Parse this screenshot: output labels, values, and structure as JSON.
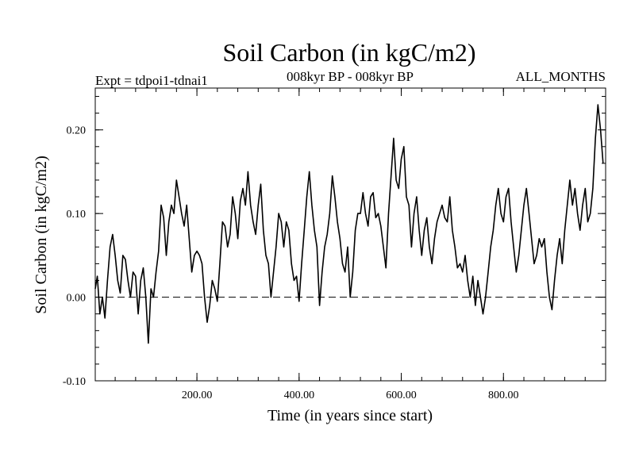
{
  "chart_data": {
    "type": "line",
    "title": "Soil Carbon (in kgC/m2)",
    "subtitle_left": "Expt = tdpoi1-tdnai1",
    "subtitle_center": "008kyr BP - 008kyr BP",
    "subtitle_right": "ALL_MONTHS",
    "xlabel": "Time (in years since start)",
    "ylabel": "Soil Carbon (in kgC/m2)",
    "xlim": [
      1,
      1000
    ],
    "ylim": [
      -0.1,
      0.25
    ],
    "x_ticks": [
      200,
      400,
      600,
      800
    ],
    "x_tick_labels": [
      "200.00",
      "400.00",
      "600.00",
      "800.00"
    ],
    "y_ticks": [
      -0.1,
      0.0,
      0.1,
      0.2
    ],
    "y_tick_labels": [
      "-0.10",
      "0.00",
      "0.10",
      "0.20"
    ],
    "zero_line": 0.0,
    "series": [
      {
        "name": "Soil Carbon",
        "color": "#000000",
        "points": [
          [
            1,
            0.01
          ],
          [
            5,
            0.025
          ],
          [
            10,
            -0.02
          ],
          [
            15,
            0.0
          ],
          [
            20,
            -0.025
          ],
          [
            25,
            0.02
          ],
          [
            30,
            0.06
          ],
          [
            35,
            0.075
          ],
          [
            40,
            0.05
          ],
          [
            45,
            0.02
          ],
          [
            50,
            0.005
          ],
          [
            55,
            0.05
          ],
          [
            60,
            0.045
          ],
          [
            65,
            0.02
          ],
          [
            70,
            0.0
          ],
          [
            75,
            0.03
          ],
          [
            80,
            0.025
          ],
          [
            85,
            -0.02
          ],
          [
            90,
            0.02
          ],
          [
            95,
            0.035
          ],
          [
            100,
            0.0
          ],
          [
            105,
            -0.055
          ],
          [
            110,
            0.01
          ],
          [
            115,
            0.0
          ],
          [
            120,
            0.03
          ],
          [
            125,
            0.055
          ],
          [
            130,
            0.11
          ],
          [
            135,
            0.095
          ],
          [
            140,
            0.05
          ],
          [
            145,
            0.09
          ],
          [
            150,
            0.11
          ],
          [
            155,
            0.1
          ],
          [
            160,
            0.14
          ],
          [
            165,
            0.12
          ],
          [
            170,
            0.1
          ],
          [
            175,
            0.085
          ],
          [
            180,
            0.11
          ],
          [
            185,
            0.07
          ],
          [
            190,
            0.03
          ],
          [
            195,
            0.05
          ],
          [
            200,
            0.055
          ],
          [
            205,
            0.05
          ],
          [
            210,
            0.04
          ],
          [
            215,
            0.0
          ],
          [
            220,
            -0.03
          ],
          [
            225,
            -0.01
          ],
          [
            230,
            0.02
          ],
          [
            235,
            0.01
          ],
          [
            240,
            -0.005
          ],
          [
            245,
            0.04
          ],
          [
            250,
            0.09
          ],
          [
            255,
            0.085
          ],
          [
            260,
            0.06
          ],
          [
            265,
            0.075
          ],
          [
            270,
            0.12
          ],
          [
            275,
            0.1
          ],
          [
            280,
            0.07
          ],
          [
            285,
            0.115
          ],
          [
            290,
            0.13
          ],
          [
            295,
            0.11
          ],
          [
            300,
            0.15
          ],
          [
            305,
            0.11
          ],
          [
            310,
            0.09
          ],
          [
            315,
            0.075
          ],
          [
            320,
            0.11
          ],
          [
            325,
            0.135
          ],
          [
            330,
            0.08
          ],
          [
            335,
            0.05
          ],
          [
            340,
            0.04
          ],
          [
            345,
            0.0
          ],
          [
            350,
            0.03
          ],
          [
            355,
            0.06
          ],
          [
            360,
            0.1
          ],
          [
            365,
            0.09
          ],
          [
            370,
            0.06
          ],
          [
            375,
            0.09
          ],
          [
            380,
            0.08
          ],
          [
            385,
            0.04
          ],
          [
            390,
            0.02
          ],
          [
            395,
            0.025
          ],
          [
            400,
            -0.005
          ],
          [
            405,
            0.04
          ],
          [
            410,
            0.08
          ],
          [
            415,
            0.12
          ],
          [
            420,
            0.15
          ],
          [
            425,
            0.11
          ],
          [
            430,
            0.08
          ],
          [
            435,
            0.06
          ],
          [
            440,
            -0.01
          ],
          [
            445,
            0.03
          ],
          [
            450,
            0.06
          ],
          [
            455,
            0.075
          ],
          [
            460,
            0.1
          ],
          [
            465,
            0.145
          ],
          [
            470,
            0.12
          ],
          [
            475,
            0.09
          ],
          [
            480,
            0.07
          ],
          [
            485,
            0.04
          ],
          [
            490,
            0.03
          ],
          [
            495,
            0.06
          ],
          [
            500,
            0.0
          ],
          [
            505,
            0.03
          ],
          [
            510,
            0.08
          ],
          [
            515,
            0.1
          ],
          [
            520,
            0.1
          ],
          [
            525,
            0.125
          ],
          [
            530,
            0.1
          ],
          [
            535,
            0.085
          ],
          [
            540,
            0.12
          ],
          [
            545,
            0.125
          ],
          [
            550,
            0.095
          ],
          [
            555,
            0.1
          ],
          [
            560,
            0.085
          ],
          [
            565,
            0.06
          ],
          [
            570,
            0.035
          ],
          [
            575,
            0.1
          ],
          [
            580,
            0.145
          ],
          [
            585,
            0.19
          ],
          [
            590,
            0.14
          ],
          [
            595,
            0.13
          ],
          [
            600,
            0.165
          ],
          [
            605,
            0.18
          ],
          [
            610,
            0.12
          ],
          [
            615,
            0.11
          ],
          [
            620,
            0.06
          ],
          [
            625,
            0.1
          ],
          [
            630,
            0.12
          ],
          [
            635,
            0.08
          ],
          [
            640,
            0.05
          ],
          [
            645,
            0.08
          ],
          [
            650,
            0.095
          ],
          [
            655,
            0.06
          ],
          [
            660,
            0.04
          ],
          [
            665,
            0.07
          ],
          [
            670,
            0.09
          ],
          [
            675,
            0.1
          ],
          [
            680,
            0.11
          ],
          [
            685,
            0.095
          ],
          [
            690,
            0.09
          ],
          [
            695,
            0.12
          ],
          [
            700,
            0.08
          ],
          [
            705,
            0.06
          ],
          [
            710,
            0.035
          ],
          [
            715,
            0.04
          ],
          [
            720,
            0.03
          ],
          [
            725,
            0.05
          ],
          [
            730,
            0.02
          ],
          [
            735,
            0.0
          ],
          [
            740,
            0.025
          ],
          [
            745,
            -0.01
          ],
          [
            750,
            0.02
          ],
          [
            755,
            0.0
          ],
          [
            760,
            -0.02
          ],
          [
            765,
            0.0
          ],
          [
            770,
            0.03
          ],
          [
            775,
            0.06
          ],
          [
            780,
            0.08
          ],
          [
            785,
            0.11
          ],
          [
            790,
            0.13
          ],
          [
            795,
            0.1
          ],
          [
            800,
            0.09
          ],
          [
            805,
            0.12
          ],
          [
            810,
            0.13
          ],
          [
            815,
            0.09
          ],
          [
            820,
            0.06
          ],
          [
            825,
            0.03
          ],
          [
            830,
            0.05
          ],
          [
            835,
            0.08
          ],
          [
            840,
            0.11
          ],
          [
            845,
            0.13
          ],
          [
            850,
            0.1
          ],
          [
            855,
            0.07
          ],
          [
            860,
            0.04
          ],
          [
            865,
            0.05
          ],
          [
            870,
            0.07
          ],
          [
            875,
            0.06
          ],
          [
            880,
            0.07
          ],
          [
            885,
            0.03
          ],
          [
            890,
            0.0
          ],
          [
            895,
            -0.015
          ],
          [
            900,
            0.02
          ],
          [
            905,
            0.05
          ],
          [
            910,
            0.07
          ],
          [
            915,
            0.04
          ],
          [
            920,
            0.08
          ],
          [
            925,
            0.11
          ],
          [
            930,
            0.14
          ],
          [
            935,
            0.11
          ],
          [
            940,
            0.13
          ],
          [
            945,
            0.1
          ],
          [
            950,
            0.08
          ],
          [
            955,
            0.11
          ],
          [
            960,
            0.13
          ],
          [
            965,
            0.09
          ],
          [
            970,
            0.1
          ],
          [
            975,
            0.13
          ],
          [
            980,
            0.19
          ],
          [
            985,
            0.23
          ],
          [
            990,
            0.2
          ],
          [
            995,
            0.16
          ]
        ]
      }
    ]
  }
}
